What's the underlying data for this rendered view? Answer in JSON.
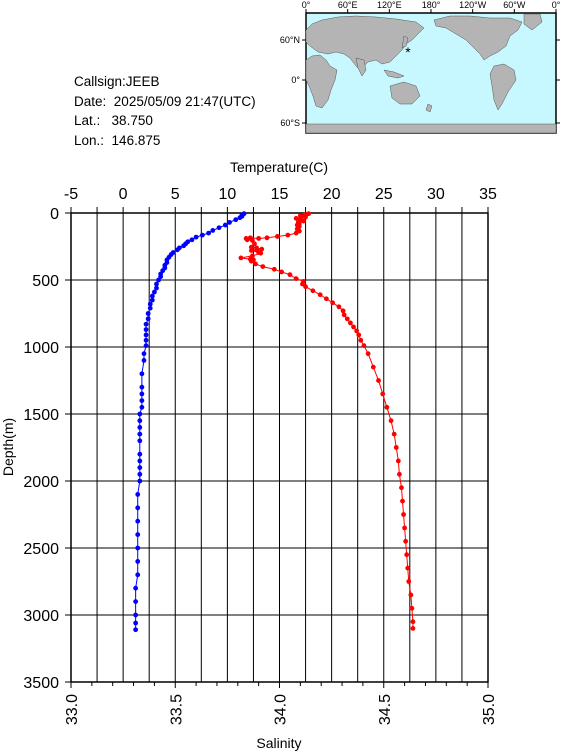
{
  "header": {
    "callsign_label": "Callsign:",
    "callsign": "JEEB",
    "date_label": "Date:",
    "date": "2025/05/09 21:47(UTC)",
    "lat_label": "Lat.:",
    "lat": "38.750",
    "lon_label": "Lon.:",
    "lon": "146.875"
  },
  "map": {
    "top_labels": [
      "0°",
      "60°E",
      "120°E",
      "180°",
      "120°W",
      "60°W",
      "0°"
    ],
    "left_labels": [
      "60°N",
      "0°",
      "60°S"
    ],
    "colors": {
      "ocean": "#c8f8ff",
      "land": "#b4b4b4",
      "marker": "#ff0000"
    },
    "marker": {
      "lat": 38.75,
      "lon": 146.875
    }
  },
  "chart_data": {
    "type": "line",
    "xlabel_top": "Temperature(C)",
    "xlabel_bottom": "Salinity",
    "ylabel": "Depth(m)",
    "temp_range": [
      -5,
      35
    ],
    "sal_range": [
      33.0,
      35.0
    ],
    "depth_range": [
      0,
      3500
    ],
    "temp_ticks": [
      "-5",
      "0",
      "5",
      "10",
      "15",
      "20",
      "25",
      "30",
      "35"
    ],
    "sal_ticks": [
      "33.0",
      "33.5",
      "34.0",
      "34.5",
      "35.0"
    ],
    "depth_ticks": [
      "0",
      "500",
      "1000",
      "1500",
      "2000",
      "2500",
      "3000",
      "3500"
    ],
    "grid": true,
    "series": [
      {
        "color": "#ff0000",
        "axis": "temperature",
        "points": [
          [
            17.8,
            5
          ],
          [
            17.6,
            10
          ],
          [
            17.4,
            15
          ],
          [
            17.0,
            20
          ],
          [
            17.2,
            25
          ],
          [
            17.5,
            30
          ],
          [
            16.6,
            40
          ],
          [
            17.0,
            50
          ],
          [
            17.3,
            60
          ],
          [
            16.8,
            70
          ],
          [
            16.9,
            80
          ],
          [
            16.7,
            90
          ],
          [
            16.9,
            100
          ],
          [
            16.8,
            110
          ],
          [
            16.7,
            120
          ],
          [
            16.9,
            135
          ],
          [
            16.6,
            150
          ],
          [
            15.8,
            165
          ],
          [
            14.8,
            175
          ],
          [
            13.8,
            185
          ],
          [
            13.0,
            190
          ],
          [
            12.2,
            185
          ],
          [
            11.8,
            190
          ],
          [
            11.9,
            200
          ],
          [
            12.4,
            205
          ],
          [
            12.6,
            230
          ],
          [
            12.3,
            255
          ],
          [
            12.8,
            260
          ],
          [
            13.3,
            270
          ],
          [
            12.8,
            275
          ],
          [
            12.3,
            280
          ],
          [
            13.0,
            295
          ],
          [
            13.2,
            300
          ],
          [
            12.4,
            320
          ],
          [
            11.3,
            335
          ],
          [
            12.2,
            345
          ],
          [
            12.5,
            350
          ],
          [
            12.3,
            360
          ],
          [
            12.7,
            380
          ],
          [
            13.4,
            400
          ],
          [
            14.5,
            420
          ],
          [
            15.2,
            440
          ],
          [
            16.0,
            460
          ],
          [
            16.6,
            490
          ],
          [
            17.3,
            510
          ],
          [
            17.2,
            530
          ],
          [
            17.5,
            550
          ],
          [
            18.2,
            580
          ],
          [
            18.9,
            610
          ],
          [
            19.5,
            640
          ],
          [
            20.1,
            670
          ],
          [
            20.7,
            700
          ],
          [
            21.1,
            730
          ],
          [
            21.2,
            760
          ],
          [
            21.5,
            790
          ],
          [
            21.8,
            820
          ],
          [
            22.1,
            850
          ],
          [
            22.4,
            880
          ],
          [
            22.6,
            910
          ],
          [
            22.8,
            950
          ],
          [
            23.1,
            990
          ],
          [
            23.5,
            1050
          ],
          [
            24.0,
            1150
          ],
          [
            24.5,
            1250
          ],
          [
            24.9,
            1350
          ],
          [
            25.3,
            1450
          ],
          [
            25.7,
            1550
          ],
          [
            26.0,
            1650
          ],
          [
            26.2,
            1750
          ],
          [
            26.4,
            1850
          ],
          [
            26.5,
            1950
          ],
          [
            26.7,
            2050
          ],
          [
            26.8,
            2150
          ],
          [
            26.9,
            2250
          ],
          [
            27.0,
            2350
          ],
          [
            27.1,
            2450
          ],
          [
            27.2,
            2550
          ],
          [
            27.3,
            2650
          ],
          [
            27.4,
            2750
          ],
          [
            27.6,
            2850
          ],
          [
            27.7,
            2950
          ],
          [
            27.8,
            3050
          ],
          [
            27.8,
            3100
          ]
        ]
      },
      {
        "color": "#0000ff",
        "axis": "salinity",
        "points": [
          [
            33.83,
            5
          ],
          [
            33.82,
            15
          ],
          [
            33.82,
            25
          ],
          [
            33.81,
            35
          ],
          [
            33.79,
            50
          ],
          [
            33.76,
            70
          ],
          [
            33.74,
            90
          ],
          [
            33.71,
            110
          ],
          [
            33.68,
            130
          ],
          [
            33.66,
            150
          ],
          [
            33.63,
            165
          ],
          [
            33.6,
            180
          ],
          [
            33.58,
            200
          ],
          [
            33.56,
            215
          ],
          [
            33.55,
            230
          ],
          [
            33.54,
            245
          ],
          [
            33.52,
            260
          ],
          [
            33.51,
            275
          ],
          [
            33.49,
            295
          ],
          [
            33.48,
            310
          ],
          [
            33.47,
            330
          ],
          [
            33.46,
            350
          ],
          [
            33.46,
            370
          ],
          [
            33.45,
            390
          ],
          [
            33.45,
            410
          ],
          [
            33.44,
            430
          ],
          [
            33.43,
            455
          ],
          [
            33.43,
            475
          ],
          [
            33.42,
            500
          ],
          [
            33.41,
            530
          ],
          [
            33.41,
            560
          ],
          [
            33.4,
            590
          ],
          [
            33.39,
            620
          ],
          [
            33.39,
            650
          ],
          [
            33.38,
            680
          ],
          [
            33.38,
            710
          ],
          [
            33.37,
            750
          ],
          [
            33.37,
            790
          ],
          [
            33.36,
            830
          ],
          [
            33.36,
            870
          ],
          [
            33.36,
            910
          ],
          [
            33.36,
            950
          ],
          [
            33.36,
            990
          ],
          [
            33.35,
            1050
          ],
          [
            33.35,
            1100
          ],
          [
            33.34,
            1200
          ],
          [
            33.34,
            1300
          ],
          [
            33.34,
            1350
          ],
          [
            33.34,
            1400
          ],
          [
            33.34,
            1450
          ],
          [
            33.33,
            1500
          ],
          [
            33.33,
            1550
          ],
          [
            33.33,
            1600
          ],
          [
            33.33,
            1650
          ],
          [
            33.33,
            1700
          ],
          [
            33.33,
            1800
          ],
          [
            33.33,
            1850
          ],
          [
            33.33,
            1900
          ],
          [
            33.33,
            1950
          ],
          [
            33.33,
            2000
          ],
          [
            33.32,
            2100
          ],
          [
            33.32,
            2200
          ],
          [
            33.32,
            2300
          ],
          [
            33.32,
            2400
          ],
          [
            33.32,
            2500
          ],
          [
            33.32,
            2600
          ],
          [
            33.32,
            2700
          ],
          [
            33.31,
            2800
          ],
          [
            33.31,
            2900
          ],
          [
            33.31,
            3000
          ],
          [
            33.31,
            3060
          ],
          [
            33.31,
            3110
          ]
        ]
      }
    ]
  }
}
